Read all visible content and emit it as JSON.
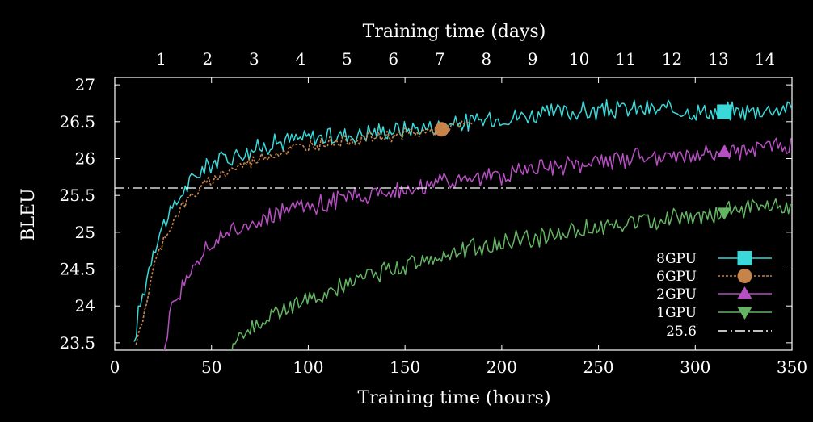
{
  "chart_data": {
    "type": "line",
    "xlabel": "Training time (hours)",
    "x2label": "Training time (days)",
    "ylabel": "BLEU",
    "xlim": [
      0,
      350
    ],
    "ylim": [
      23.4,
      27.1
    ],
    "x_ticks": [
      0,
      50,
      100,
      150,
      200,
      250,
      300,
      350
    ],
    "x_tick_labels": [
      "0",
      "50",
      "100",
      "150",
      "200",
      "250",
      "300",
      "350"
    ],
    "y_ticks": [
      23.5,
      24,
      24.5,
      25,
      25.5,
      26,
      26.5,
      27
    ],
    "y_tick_labels": [
      "23.5",
      "24",
      "24.5",
      "25",
      "25.5",
      "26",
      "26.5",
      "27"
    ],
    "x2_ticks_days": [
      1,
      2,
      3,
      4,
      5,
      6,
      7,
      8,
      9,
      10,
      11,
      12,
      13,
      14
    ],
    "x2_tick_labels": [
      "1",
      "2",
      "3",
      "4",
      "5",
      "6",
      "7",
      "8",
      "9",
      "10",
      "11",
      "12",
      "13",
      "14"
    ],
    "legend_position": "bottom-right",
    "grid": false,
    "series": [
      {
        "name": "8GPU",
        "color": "#3ad8d8",
        "marker": "square",
        "marker_x": 315,
        "x": [
          10,
          12,
          15,
          20,
          25,
          30,
          35,
          40,
          45,
          50,
          55,
          60,
          70,
          80,
          90,
          100,
          110,
          120,
          130,
          140,
          150,
          160,
          170,
          180,
          190,
          200,
          210,
          220,
          230,
          240,
          250,
          260,
          270,
          280,
          290,
          300,
          310,
          320,
          330,
          340,
          350
        ],
        "y": [
          23.4,
          23.9,
          24.2,
          24.8,
          25.1,
          25.3,
          25.55,
          25.7,
          25.85,
          25.95,
          26.0,
          26.05,
          26.1,
          26.2,
          26.25,
          26.28,
          26.3,
          26.32,
          26.35,
          26.38,
          26.4,
          26.42,
          26.45,
          26.48,
          26.52,
          26.55,
          26.58,
          26.6,
          26.62,
          26.64,
          26.65,
          26.66,
          26.67,
          26.66,
          26.65,
          26.64,
          26.63,
          26.64,
          26.65,
          26.67,
          26.7
        ]
      },
      {
        "name": "6GPU",
        "color": "#c7844a",
        "marker": "circle",
        "marker_x": 169,
        "dashed": true,
        "x": [
          11,
          13,
          16,
          20,
          25,
          30,
          35,
          40,
          45,
          50,
          55,
          60,
          70,
          80,
          90,
          100,
          110,
          120,
          130,
          140,
          150,
          160,
          170,
          180,
          185
        ],
        "y": [
          23.4,
          23.7,
          24.0,
          24.5,
          24.9,
          25.15,
          25.35,
          25.5,
          25.6,
          25.7,
          25.78,
          25.85,
          25.95,
          26.05,
          26.12,
          26.18,
          26.22,
          26.25,
          26.28,
          26.3,
          26.33,
          26.36,
          26.4,
          26.45,
          26.48
        ]
      },
      {
        "name": "2GPU",
        "color": "#b64fc1",
        "marker": "triangle-up",
        "marker_x": 315,
        "x": [
          25,
          28,
          30,
          35,
          40,
          45,
          50,
          55,
          60,
          70,
          80,
          90,
          100,
          110,
          120,
          130,
          140,
          150,
          160,
          170,
          180,
          190,
          200,
          210,
          220,
          230,
          240,
          250,
          260,
          270,
          280,
          290,
          300,
          310,
          320,
          330,
          340,
          350
        ],
        "y": [
          23.4,
          23.8,
          24.0,
          24.3,
          24.55,
          24.7,
          24.85,
          24.95,
          25.0,
          25.1,
          25.2,
          25.28,
          25.35,
          25.42,
          25.48,
          25.52,
          25.56,
          25.6,
          25.63,
          25.66,
          25.7,
          25.74,
          25.78,
          25.82,
          25.86,
          25.9,
          25.92,
          25.95,
          25.97,
          26.0,
          26.02,
          26.04,
          26.06,
          26.08,
          26.1,
          26.12,
          26.15,
          26.18
        ]
      },
      {
        "name": "1GPU",
        "color": "#63b463",
        "marker": "triangle-down",
        "marker_x": 315,
        "x": [
          60,
          65,
          70,
          80,
          90,
          100,
          110,
          120,
          130,
          140,
          150,
          160,
          170,
          180,
          190,
          200,
          210,
          220,
          230,
          240,
          250,
          260,
          270,
          280,
          290,
          300,
          310,
          320,
          330,
          340,
          350
        ],
        "y": [
          23.4,
          23.55,
          23.7,
          23.85,
          23.98,
          24.1,
          24.2,
          24.3,
          24.4,
          24.48,
          24.55,
          24.62,
          24.68,
          24.74,
          24.8,
          24.86,
          24.9,
          24.94,
          24.98,
          25.02,
          25.06,
          25.1,
          25.13,
          25.16,
          25.19,
          25.22,
          25.25,
          25.28,
          25.31,
          25.34,
          25.37
        ]
      },
      {
        "name": "25.6",
        "color": "#ffffff",
        "marker": "none",
        "dashdot": true,
        "constant": 25.6
      }
    ]
  }
}
